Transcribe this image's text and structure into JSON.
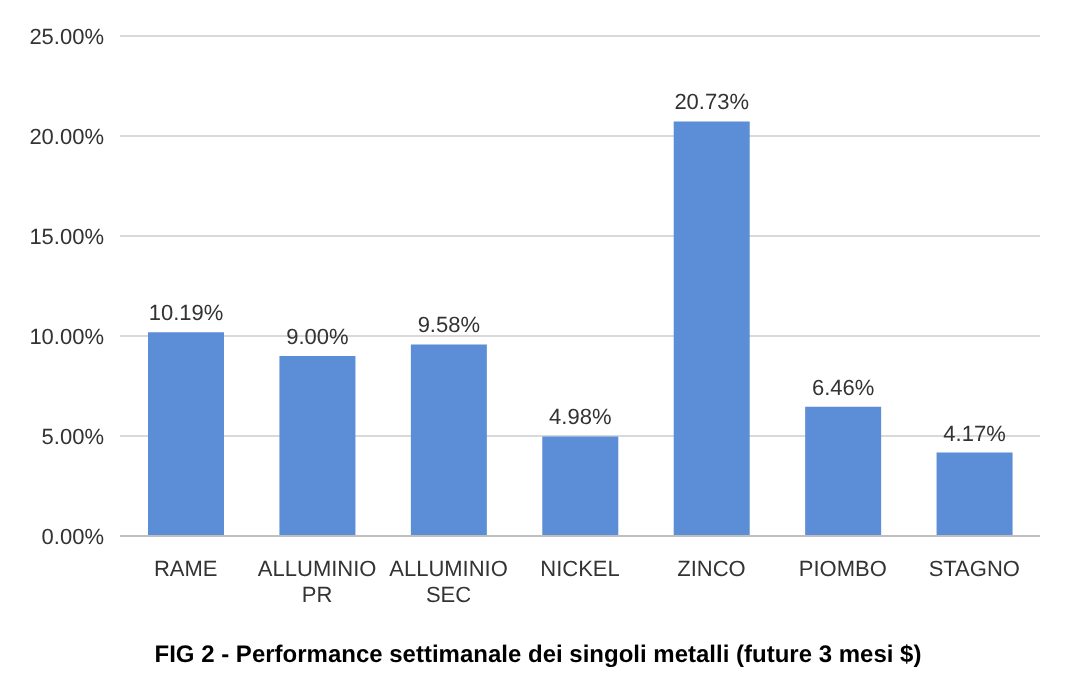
{
  "chart_data": {
    "type": "bar",
    "title": "FIG 2 - Performance settimanale dei singoli metalli (future 3 mesi $)",
    "categories": [
      "RAME",
      "ALLUMINIO PR",
      "ALLUMINIO SEC",
      "NICKEL",
      "ZINCO",
      "PIOMBO",
      "STAGNO"
    ],
    "values": [
      10.19,
      9.0,
      9.58,
      4.98,
      20.73,
      6.46,
      4.17
    ],
    "value_labels": [
      "10.19%",
      "9.00%",
      "9.58%",
      "4.98%",
      "20.73%",
      "6.46%",
      "4.17%"
    ],
    "color": "#5b8ed6",
    "ylim": [
      0,
      25
    ],
    "yticks": [
      {
        "value": 0,
        "label": "0.00%"
      },
      {
        "value": 5,
        "label": "5.00%"
      },
      {
        "value": 10,
        "label": "10.00%"
      },
      {
        "value": 15,
        "label": "15.00%"
      },
      {
        "value": 20,
        "label": "20.00%"
      },
      {
        "value": 25,
        "label": "25.00%"
      }
    ],
    "grid": "y",
    "legend": false
  }
}
